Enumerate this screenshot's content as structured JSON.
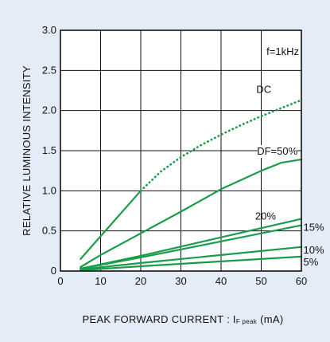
{
  "chart_data": {
    "type": "line",
    "title": "",
    "xlabel_main": "PEAK  FORWARD  CURRENT : I",
    "xlabel_sub": "F peak",
    "xlabel_unit": "(mA)",
    "ylabel": "RELATIVE  LUMINOUS  INTENSITY",
    "annotation": "f=1kHz",
    "xlim": [
      0,
      60
    ],
    "ylim": [
      0,
      3.0
    ],
    "xticks": [
      "0",
      "10",
      "20",
      "30",
      "40",
      "50",
      "60"
    ],
    "yticks": [
      "0",
      "0.5",
      "1.0",
      "1.5",
      "2.0",
      "2.5",
      "3.0"
    ],
    "grid": true,
    "series": [
      {
        "name": "DC",
        "x": [
          5,
          20,
          30,
          40,
          50,
          60
        ],
        "y": [
          0.15,
          1.0,
          1.4,
          1.7,
          1.93,
          2.13
        ],
        "segments": [
          {
            "style": "solid",
            "x": [
              5,
              20
            ],
            "y": [
              0.15,
              1.0
            ]
          },
          {
            "style": "dotted",
            "x": [
              20,
              25,
              30,
              35,
              40,
              45,
              50,
              55,
              60
            ],
            "y": [
              1.0,
              1.24,
              1.42,
              1.57,
              1.7,
              1.82,
              1.93,
              2.03,
              2.13
            ]
          }
        ]
      },
      {
        "name": "DF=50%",
        "x": [
          5,
          10,
          20,
          30,
          40,
          50,
          55,
          60
        ],
        "y": [
          0.05,
          0.2,
          0.47,
          0.74,
          1.02,
          1.25,
          1.35,
          1.39
        ]
      },
      {
        "name": "20%",
        "x": [
          5,
          20,
          40,
          60
        ],
        "y": [
          0.03,
          0.19,
          0.42,
          0.65
        ]
      },
      {
        "name": "15%",
        "x": [
          5,
          20,
          40,
          60
        ],
        "y": [
          0.03,
          0.17,
          0.37,
          0.57
        ]
      },
      {
        "name": "10%",
        "x": [
          5,
          20,
          40,
          60
        ],
        "y": [
          0.02,
          0.1,
          0.2,
          0.3
        ]
      },
      {
        "name": "5%",
        "x": [
          5,
          20,
          40,
          60
        ],
        "y": [
          0.01,
          0.06,
          0.12,
          0.18
        ]
      }
    ],
    "line_color": "#1a9c4a",
    "grid_color": "#111111",
    "plot_background": "#ffffff"
  }
}
